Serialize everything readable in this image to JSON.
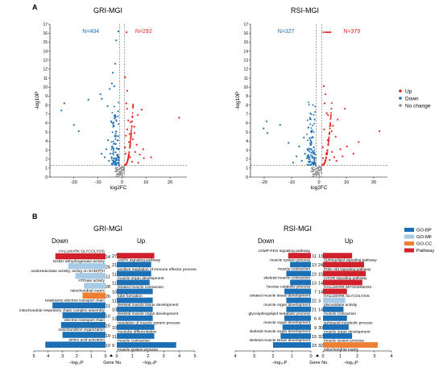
{
  "panel_a_label": "A",
  "panel_b_label": "B",
  "legend_a": {
    "up": "Up",
    "down": "Down",
    "nochange": "No change"
  },
  "legend_b": [
    "GO-BP",
    "GO-MF",
    "GO-CC",
    "Pathway"
  ],
  "colors": {
    "up": "#e8221f",
    "down": "#1a6fb5",
    "nochange": "#8a8a8a",
    "bp": "#1a6fb5",
    "mf": "#a7cbe6",
    "cc": "#ee7e32",
    "pathway": "#d0202b"
  },
  "chart_data": [
    {
      "type": "scatter",
      "title": "GRI-MGI",
      "xlabel": "log2FC",
      "ylabel": "-log10P",
      "xlim": [
        -30,
        27
      ],
      "ylim": [
        0,
        17
      ],
      "xticks": [
        -20,
        -10,
        0,
        10,
        20
      ],
      "yticks": [
        0,
        1,
        2,
        3,
        4,
        5,
        6,
        7,
        8,
        9,
        10,
        11,
        12,
        13,
        14,
        15,
        16,
        17
      ],
      "counts": {
        "down": "N=404",
        "up": "N=292"
      },
      "thresholds": {
        "x": [
          -1,
          1
        ],
        "y": 1.3
      },
      "series": [
        {
          "name": "Down",
          "points": [
            [
              -24,
              8.2
            ],
            [
              -25.2,
              7.4
            ],
            [
              -20,
              5.8
            ],
            [
              -18,
              5.1
            ],
            [
              -14,
              8.6
            ],
            [
              -9,
              9.2
            ],
            [
              -8.4,
              8.7
            ],
            [
              -6,
              7.9
            ],
            [
              -5.1,
              9.8
            ],
            [
              -4.2,
              10.4
            ],
            [
              -3.8,
              11.6
            ],
            [
              -3.2,
              10.1
            ],
            [
              -2.8,
              12.6
            ],
            [
              -2.4,
              15.2
            ],
            [
              -1.5,
              16.2
            ],
            [
              -4.5,
              6.2
            ],
            [
              -3.6,
              5.8
            ],
            [
              -2.5,
              4.6
            ],
            [
              -5.8,
              4.1
            ],
            [
              -3.1,
              3.7
            ],
            [
              -2.2,
              3.2
            ],
            [
              -6.5,
              3.1
            ],
            [
              -4.8,
              2.6
            ],
            [
              -1.8,
              2.4
            ],
            [
              -7.2,
              2.2
            ],
            [
              -2.1,
              1.9
            ],
            [
              -5.4,
              1.8
            ],
            [
              -1.4,
              1.6
            ],
            [
              -3.4,
              2.1
            ],
            [
              -8.5,
              2.6
            ],
            [
              -1.7,
              4.1
            ],
            [
              -2.9,
              6.6
            ],
            [
              -1.6,
              7.3
            ],
            [
              -4.1,
              3.4
            ]
          ]
        },
        {
          "name": "Up",
          "points": [
            [
              23.8,
              6.6
            ],
            [
              8.2,
              7.5
            ],
            [
              6.6,
              6.9
            ],
            [
              5.1,
              5.6
            ],
            [
              3.6,
              6.1
            ],
            [
              2.1,
              7.6
            ],
            [
              1.8,
              8.2
            ],
            [
              2.6,
              6.3
            ],
            [
              1.3,
              11.1
            ],
            [
              2.2,
              9.6
            ],
            [
              1.9,
              16.1
            ],
            [
              3.8,
              5.1
            ],
            [
              4.5,
              4.2
            ],
            [
              6.1,
              3.6
            ],
            [
              2.9,
              3.9
            ],
            [
              5.5,
              2.8
            ],
            [
              7.4,
              2.5
            ],
            [
              3.4,
              2.2
            ],
            [
              9.1,
              2.1
            ],
            [
              1.5,
              2.6
            ],
            [
              4.2,
              1.7
            ],
            [
              2.4,
              1.9
            ],
            [
              6.8,
              1.6
            ],
            [
              1.6,
              4.6
            ],
            [
              3.1,
              4.8
            ],
            [
              8.8,
              3.1
            ],
            [
              12.1,
              2.2
            ],
            [
              1.2,
              3.3
            ],
            [
              5.2,
              4.9
            ],
            [
              2.2,
              5.3
            ]
          ]
        }
      ]
    },
    {
      "type": "scatter",
      "title": "RSI-MGI",
      "xlabel": "log2FC",
      "ylabel": "-log10P",
      "xlim": [
        -25,
        25
      ],
      "ylim": [
        0,
        17
      ],
      "xticks": [
        -20,
        -10,
        0,
        10,
        20
      ],
      "yticks": [
        0,
        1,
        2,
        3,
        4,
        5,
        6,
        7,
        8,
        9,
        10,
        11,
        12,
        13,
        14,
        15,
        16,
        17
      ],
      "counts": {
        "down": "N=327",
        "up": "N=379"
      },
      "thresholds": {
        "x": [
          -1,
          1
        ],
        "y": 1.3
      },
      "series": [
        {
          "name": "Down",
          "points": [
            [
              -20.2,
              5.4
            ],
            [
              -19.1,
              6.2
            ],
            [
              -14.2,
              5.8
            ],
            [
              -18.8,
              4.9
            ],
            [
              -11.1,
              3.8
            ],
            [
              -7.2,
              3.4
            ],
            [
              -5.1,
              2.6
            ],
            [
              -4.2,
              3.1
            ],
            [
              -3.4,
              2.2
            ],
            [
              -2.2,
              2.8
            ],
            [
              -1.8,
              1.9
            ],
            [
              -6.3,
              1.8
            ],
            [
              -3.1,
              4.1
            ],
            [
              -2.6,
              5.1
            ],
            [
              -1.6,
              6.4
            ],
            [
              -2.9,
              3.6
            ],
            [
              -8.2,
              2.3
            ],
            [
              -4.4,
              2.1
            ],
            [
              -1.4,
              2.5
            ],
            [
              -2.3,
              1.6
            ],
            [
              -9.4,
              1.6
            ],
            [
              -5.5,
              4.4
            ],
            [
              -3.7,
              1.7
            ],
            [
              -1.9,
              3.3
            ]
          ]
        },
        {
          "name": "Up",
          "points": [
            [
              22.1,
              5.1
            ],
            [
              9.5,
              7.6
            ],
            [
              6.8,
              6.4
            ],
            [
              5.1,
              5.7
            ],
            [
              3.3,
              6.9
            ],
            [
              2.1,
              8.2
            ],
            [
              1.8,
              10.1
            ],
            [
              2.4,
              9.2
            ],
            [
              1.6,
              16.1
            ],
            [
              2.4,
              16.1
            ],
            [
              3.0,
              16.1
            ],
            [
              3.6,
              16.1
            ],
            [
              4.2,
              16.1
            ],
            [
              4.6,
              5.1
            ],
            [
              6.1,
              4.5
            ],
            [
              3.2,
              4.1
            ],
            [
              7.8,
              3.1
            ],
            [
              10.2,
              3.4
            ],
            [
              4.8,
              2.8
            ],
            [
              2.6,
              2.6
            ],
            [
              8.6,
              2.3
            ],
            [
              1.4,
              3.3
            ],
            [
              5.6,
              2.2
            ],
            [
              3.9,
              1.9
            ],
            [
              12.6,
              2.6
            ],
            [
              6.4,
              1.8
            ],
            [
              1.9,
              5.3
            ],
            [
              2.8,
              7.1
            ],
            [
              14.5,
              3.9
            ],
            [
              1.5,
              2.1
            ]
          ]
        }
      ]
    },
    {
      "type": "bar",
      "title": "GRI-MGI",
      "down_header": "Down",
      "up_header": "Up",
      "xlabel_left": "−log₁₀P",
      "xlabel_mid": "Gene No.",
      "xlabel_right": "−log₁₀P",
      "ticks_left": [
        "5",
        "4",
        "3",
        "2",
        "1",
        "0"
      ],
      "ticks_right": [
        "0",
        "1",
        "2",
        "3",
        "4",
        "5"
      ],
      "down": [
        {
          "label": "HALLMARK GLYCOLYSIS",
          "gene_no": "14",
          "value": 3.5,
          "category": "pathway"
        },
        {
          "label": "NADH dehydrogenase activity",
          "gene_no": "26",
          "value": 2.6,
          "category": "mf"
        },
        {
          "label": "oxidoreductase activity, acting on NAD(P)H",
          "gene_no": "11",
          "value": 2.1,
          "category": "mf"
        },
        {
          "label": "ATPase activity",
          "gene_no": "28",
          "value": 1.5,
          "category": "mf"
        },
        {
          "label": "mitochondrial matrix",
          "gene_no": "26",
          "value": 1.6,
          "category": "cc"
        },
        {
          "label": "respiratory electron transport chain",
          "gene_no": "11",
          "value": 3.7,
          "category": "bp"
        },
        {
          "label": "mitochondrial respiratory chain complex assembly",
          "gene_no": "10",
          "value": 3.0,
          "category": "bp"
        },
        {
          "label": "electron transport chain",
          "gene_no": "15",
          "value": 3.1,
          "category": "bp"
        },
        {
          "label": "mitochondrion organization",
          "gene_no": "19",
          "value": 3.0,
          "category": "bp"
        },
        {
          "label": "amino acid activation",
          "gene_no": "10",
          "value": 4.2,
          "category": "bp"
        }
      ],
      "up": [
        {
          "label": "AMPK signaling pathway",
          "gene_no": "27",
          "value": 2.4,
          "category": "pathway"
        },
        {
          "label": "positive regulation of immune effector process",
          "gene_no": "21",
          "value": 2.2,
          "category": "bp"
        },
        {
          "label": "muscle organ development",
          "gene_no": "11",
          "value": 2.2,
          "category": "bp"
        },
        {
          "label": "striated muscle contraction",
          "gene_no": "11",
          "value": 2.1,
          "category": "bp"
        },
        {
          "label": "tube formation",
          "gene_no": "10",
          "value": 2.3,
          "category": "bp"
        },
        {
          "label": "skeletal muscle tissue development",
          "gene_no": "11",
          "value": 2.3,
          "category": "bp"
        },
        {
          "label": "skeletal muscle organ development",
          "gene_no": "10",
          "value": 2.3,
          "category": "bp"
        },
        {
          "label": "regulation of muscle system process",
          "gene_no": "13",
          "value": 2.3,
          "category": "bp"
        },
        {
          "label": "myotube differentiation",
          "gene_no": "10",
          "value": 2.4,
          "category": "bp"
        },
        {
          "label": "muscle contraction",
          "gene_no": "11",
          "value": 2.4,
          "category": "bp"
        },
        {
          "label": "muscle system process",
          "gene_no": "9",
          "value": 3.8,
          "category": "bp"
        }
      ]
    },
    {
      "type": "bar",
      "title": "RSI-MGI",
      "down_header": "Down",
      "up_header": "Up",
      "xlabel_left": "−log₁₀P",
      "xlabel_mid": "Gene No.",
      "xlabel_right": "−log₁₀P",
      "ticks_left": [
        "4",
        "3",
        "2",
        "1",
        "0"
      ],
      "ticks_right": [
        "0",
        "1",
        "2",
        "3",
        "4"
      ],
      "down": [
        {
          "label": "cGMP-PKG signaling pathway",
          "gene_no": "11",
          "value": 1.2,
          "category": "pathway"
        },
        {
          "label": "muscle system process",
          "gene_no": "13",
          "value": 1.1,
          "category": "bp"
        },
        {
          "label": "muscle contraction",
          "gene_no": "23",
          "value": 1.3,
          "category": "bp"
        },
        {
          "label": "skeletal muscle contraction",
          "gene_no": "13",
          "value": 1.1,
          "category": "bp"
        },
        {
          "label": "hexose catabolic process",
          "gene_no": "7",
          "value": 1.4,
          "category": "bp"
        },
        {
          "label": "striated muscle tissue development",
          "gene_no": "22",
          "value": 1.3,
          "category": "bp"
        },
        {
          "label": "muscle organ development",
          "gene_no": "21",
          "value": 1.3,
          "category": "bp"
        },
        {
          "label": "glycosphingolipid metabolic process",
          "gene_no": "6",
          "value": 1.4,
          "category": "bp"
        },
        {
          "label": "muscle organ development",
          "gene_no": "9",
          "value": 1.5,
          "category": "bp"
        },
        {
          "label": "skeletal muscle organ development",
          "gene_no": "19",
          "value": 1.6,
          "category": "bp"
        },
        {
          "label": "skeletal muscle tissue development",
          "gene_no": "23",
          "value": 2.0,
          "category": "bp"
        }
      ],
      "up": [
        {
          "label": "Sphingolipid signaling pathway",
          "gene_no": "13",
          "value": 1.7,
          "category": "pathway"
        },
        {
          "label": "PI3K-Akt signaling pathway",
          "gene_no": "24",
          "value": 2.4,
          "category": "pathway"
        },
        {
          "label": "mTOR signaling pathway",
          "gene_no": "15",
          "value": 2.5,
          "category": "pathway"
        },
        {
          "label": "HALLMARK MYOGENESIS",
          "gene_no": "14",
          "value": 2.3,
          "category": "pathway"
        },
        {
          "label": "HALLMARK GLYCOLYSIS",
          "gene_no": "14",
          "value": 1.4,
          "category": "pathway"
        },
        {
          "label": "glucosidase activity",
          "gene_no": "3",
          "value": 1.3,
          "category": "mf"
        },
        {
          "label": "muscle contraction",
          "gene_no": "14",
          "value": 1.2,
          "category": "bp"
        },
        {
          "label": "sphingoid metabolic process",
          "gene_no": "4",
          "value": 1.4,
          "category": "bp"
        },
        {
          "label": "muscle organ development",
          "gene_no": "30",
          "value": 1.5,
          "category": "bp"
        },
        {
          "label": "muscle system process",
          "gene_no": "32",
          "value": 1.7,
          "category": "bp"
        },
        {
          "label": "mitochondrial matrix",
          "gene_no": "32",
          "value": 3.2,
          "category": "cc"
        }
      ]
    }
  ]
}
